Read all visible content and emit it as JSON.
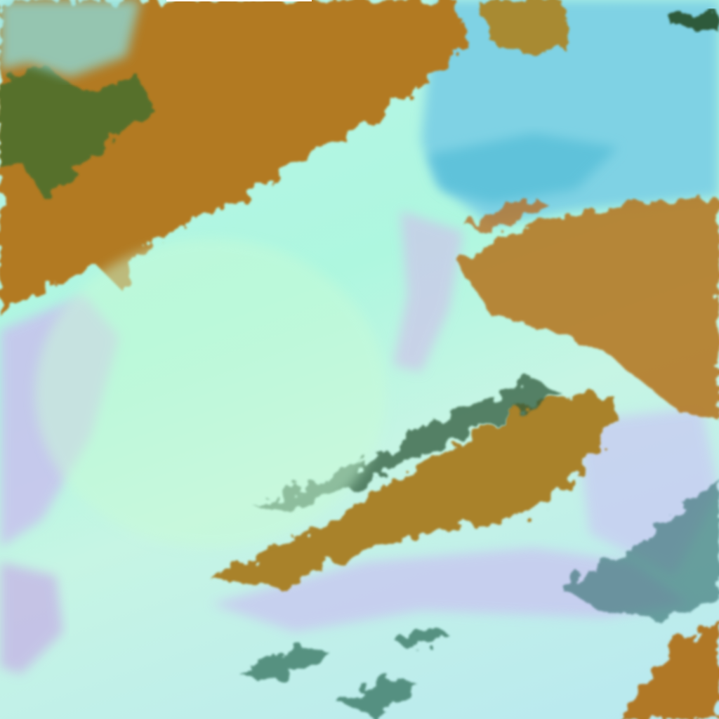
{
  "image": {
    "kind": "false-color satellite imagery",
    "colors": {
      "land": "#b07a1e",
      "land_shadow": "#3e6a2c",
      "cloud_bright": "#b6f8dc",
      "cloud_lavender": "#c9c3ec",
      "water": "#5cc4dc",
      "sea_ice_light": "#9ee0ec"
    }
  }
}
